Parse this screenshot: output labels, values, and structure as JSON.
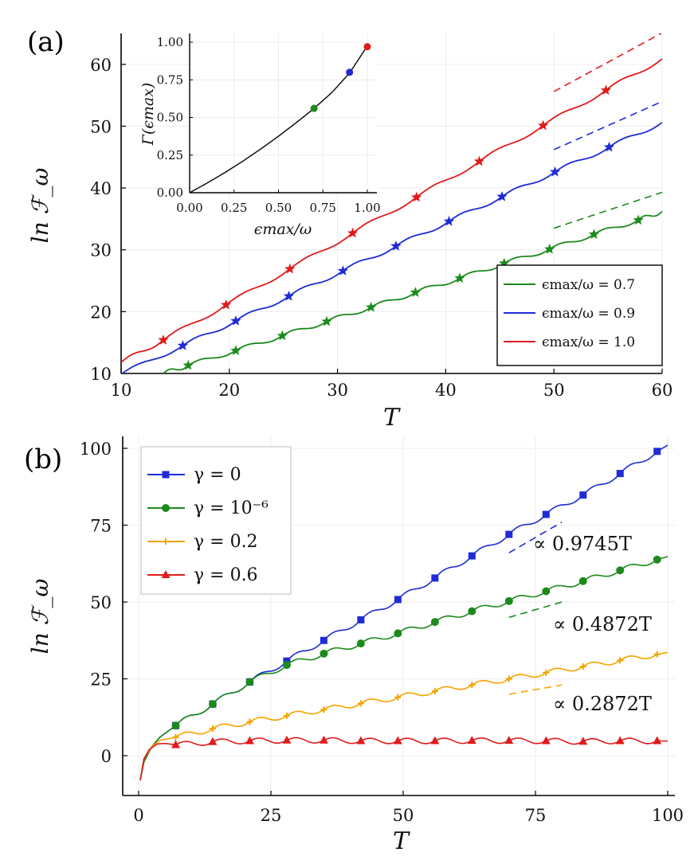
{
  "chart_data": [
    {
      "panel_label": "(a)",
      "type": "line",
      "xlabel": "T",
      "ylabel": "ln ℱ_ω",
      "xlim": [
        10,
        60
      ],
      "ylim": [
        10,
        65
      ],
      "xticks": [
        "10",
        "20",
        "30",
        "40",
        "50",
        "60"
      ],
      "yticks": [
        "10",
        "20",
        "30",
        "40",
        "50",
        "60"
      ],
      "grid": true,
      "legend_position": "lower-right",
      "series": [
        {
          "name": "ϵmax/ω = 0.7",
          "color": "#1b8a1b",
          "marker": "star",
          "line": [
            [
              13.9,
              10.0
            ],
            [
              16.2,
              11.3
            ],
            [
              20.6,
              13.7
            ],
            [
              24.9,
              16.1
            ],
            [
              29.0,
              18.4
            ],
            [
              33.1,
              20.7
            ],
            [
              37.2,
              23.1
            ],
            [
              41.3,
              25.4
            ],
            [
              45.4,
              27.8
            ],
            [
              49.6,
              30.1
            ],
            [
              53.7,
              32.5
            ],
            [
              57.8,
              34.8
            ],
            [
              60.0,
              36.2
            ]
          ],
          "markers": [
            [
              16.2,
              11.3
            ],
            [
              20.6,
              13.7
            ],
            [
              24.9,
              16.1
            ],
            [
              29.0,
              18.4
            ],
            [
              33.1,
              20.7
            ],
            [
              37.2,
              23.1
            ],
            [
              41.3,
              25.4
            ],
            [
              45.4,
              27.8
            ],
            [
              49.6,
              30.1
            ],
            [
              53.7,
              32.5
            ],
            [
              57.8,
              34.8
            ]
          ],
          "asymptote": [
            [
              50,
              33.5
            ],
            [
              60,
              39.3
            ]
          ]
        },
        {
          "name": "ϵmax/ω = 0.9",
          "color": "#1f2bd6",
          "marker": "star",
          "line": [
            [
              10.0,
              9.9
            ],
            [
              15.7,
              14.5
            ],
            [
              20.6,
              18.5
            ],
            [
              25.5,
              22.5
            ],
            [
              30.5,
              26.6
            ],
            [
              35.4,
              30.6
            ],
            [
              40.3,
              34.6
            ],
            [
              45.2,
              38.6
            ],
            [
              50.1,
              42.6
            ],
            [
              55.1,
              46.6
            ],
            [
              60.0,
              50.6
            ]
          ],
          "markers": [
            [
              15.7,
              14.5
            ],
            [
              20.6,
              18.5
            ],
            [
              25.5,
              22.5
            ],
            [
              30.5,
              26.6
            ],
            [
              35.4,
              30.6
            ],
            [
              40.3,
              34.6
            ],
            [
              45.2,
              38.6
            ],
            [
              50.1,
              42.6
            ],
            [
              55.1,
              46.6
            ]
          ],
          "asymptote": [
            [
              50,
              46.2
            ],
            [
              60,
              54.0
            ]
          ]
        },
        {
          "name": "ϵmax/ω = 1.0",
          "color": "#e01b1b",
          "marker": "star",
          "line": [
            [
              10.0,
              11.8
            ],
            [
              13.9,
              15.4
            ],
            [
              19.7,
              21.1
            ],
            [
              25.6,
              26.9
            ],
            [
              31.4,
              32.7
            ],
            [
              37.3,
              38.5
            ],
            [
              43.1,
              44.3
            ],
            [
              49.0,
              50.1
            ],
            [
              54.8,
              55.8
            ],
            [
              60.0,
              60.9
            ]
          ],
          "markers": [
            [
              13.9,
              15.4
            ],
            [
              19.7,
              21.1
            ],
            [
              25.6,
              26.9
            ],
            [
              31.4,
              32.7
            ],
            [
              37.3,
              38.5
            ],
            [
              43.1,
              44.3
            ],
            [
              49.0,
              50.1
            ],
            [
              54.8,
              55.8
            ]
          ],
          "asymptote": [
            [
              50,
              55.6
            ],
            [
              60,
              65.1
            ]
          ]
        }
      ],
      "inset": {
        "xlabel": "ϵmax/ω",
        "ylabel": "Γ(ϵmax)",
        "xlim": [
          0,
          1.0
        ],
        "ylim": [
          0,
          1.0
        ],
        "xticks": [
          "0.00",
          "0.25",
          "0.50",
          "0.75",
          "1.00"
        ],
        "yticks": [
          "0.00",
          "0.25",
          "0.50",
          "0.75",
          "1.00"
        ],
        "curve": [
          [
            0.0,
            0.0
          ],
          [
            0.1,
            0.065
          ],
          [
            0.2,
            0.135
          ],
          [
            0.3,
            0.21
          ],
          [
            0.4,
            0.29
          ],
          [
            0.5,
            0.375
          ],
          [
            0.6,
            0.465
          ],
          [
            0.7,
            0.56
          ],
          [
            0.8,
            0.665
          ],
          [
            0.9,
            0.795
          ],
          [
            1.0,
            0.975
          ]
        ],
        "points": [
          {
            "x": 0.7,
            "y": 0.56,
            "color": "#1b8a1b"
          },
          {
            "x": 0.9,
            "y": 0.8,
            "color": "#1f2bd6"
          },
          {
            "x": 1.0,
            "y": 0.97,
            "color": "#e01b1b"
          }
        ]
      }
    },
    {
      "panel_label": "(b)",
      "type": "line",
      "xlabel": "T",
      "ylabel": "ln ℱ_ω",
      "xlim": [
        0,
        100
      ],
      "ylim": [
        -10,
        105
      ],
      "xticks": [
        "0",
        "25",
        "50",
        "75",
        "100"
      ],
      "yticks": [
        "0",
        "25",
        "50",
        "75",
        "100"
      ],
      "grid": true,
      "legend_position": "top-left",
      "series": [
        {
          "name": "γ = 0",
          "color": "#1f2bd6",
          "marker": "square",
          "markers": [
            [
              7,
              9.8
            ],
            [
              14,
              16.8
            ],
            [
              21,
              24
            ],
            [
              28,
              30.8
            ],
            [
              35,
              37.5
            ],
            [
              42,
              44.2
            ],
            [
              49,
              50.8
            ],
            [
              56,
              57.8
            ],
            [
              63,
              65
            ],
            [
              70,
              72
            ],
            [
              77,
              78.5
            ],
            [
              84,
              84.8
            ],
            [
              91,
              91.8
            ],
            [
              98,
              99
            ]
          ],
          "asymptote": [
            [
              70,
              66
            ],
            [
              80,
              76
            ]
          ]
        },
        {
          "name": "γ = 10⁻⁶",
          "color": "#1b8a1b",
          "marker": "circle",
          "markers": [
            [
              7,
              9.8
            ],
            [
              14,
              16.8
            ],
            [
              21,
              24
            ],
            [
              28,
              29.5
            ],
            [
              35,
              33.2
            ],
            [
              42,
              36.5
            ],
            [
              49,
              39.8
            ],
            [
              56,
              43.5
            ],
            [
              63,
              47
            ],
            [
              70,
              50.3
            ],
            [
              77,
              53.5
            ],
            [
              84,
              56.8
            ],
            [
              91,
              60.3
            ],
            [
              98,
              63.8
            ]
          ],
          "asymptote": [
            [
              70,
              45
            ],
            [
              80,
              50
            ]
          ]
        },
        {
          "name": "γ = 0.2",
          "color": "#f5a300",
          "marker": "plus",
          "markers": [
            [
              7,
              6
            ],
            [
              14,
              8.8
            ],
            [
              21,
              11
            ],
            [
              28,
              13
            ],
            [
              35,
              15
            ],
            [
              42,
              17
            ],
            [
              49,
              19
            ],
            [
              56,
              21
            ],
            [
              63,
              23
            ],
            [
              70,
              25
            ],
            [
              77,
              27
            ],
            [
              84,
              29
            ],
            [
              91,
              31
            ],
            [
              98,
              33
            ]
          ],
          "asymptote": [
            [
              70,
              20
            ],
            [
              80,
              23
            ]
          ]
        },
        {
          "name": "γ = 0.6",
          "color": "#e01b1b",
          "marker": "triangle",
          "markers": [
            [
              7,
              3.5
            ],
            [
              14,
              4.5
            ],
            [
              21,
              4.8
            ],
            [
              28,
              5
            ],
            [
              35,
              5
            ],
            [
              42,
              4.8
            ],
            [
              49,
              4.8
            ],
            [
              56,
              4.8
            ],
            [
              63,
              4.9
            ],
            [
              70,
              4.9
            ],
            [
              77,
              4.8
            ],
            [
              84,
              4.6
            ],
            [
              91,
              4.8
            ],
            [
              98,
              4.8
            ]
          ],
          "asymptote": null
        }
      ],
      "annotations": [
        "∝ 0.9745T",
        "∝ 0.4872T",
        "∝ 0.2872T"
      ]
    }
  ]
}
